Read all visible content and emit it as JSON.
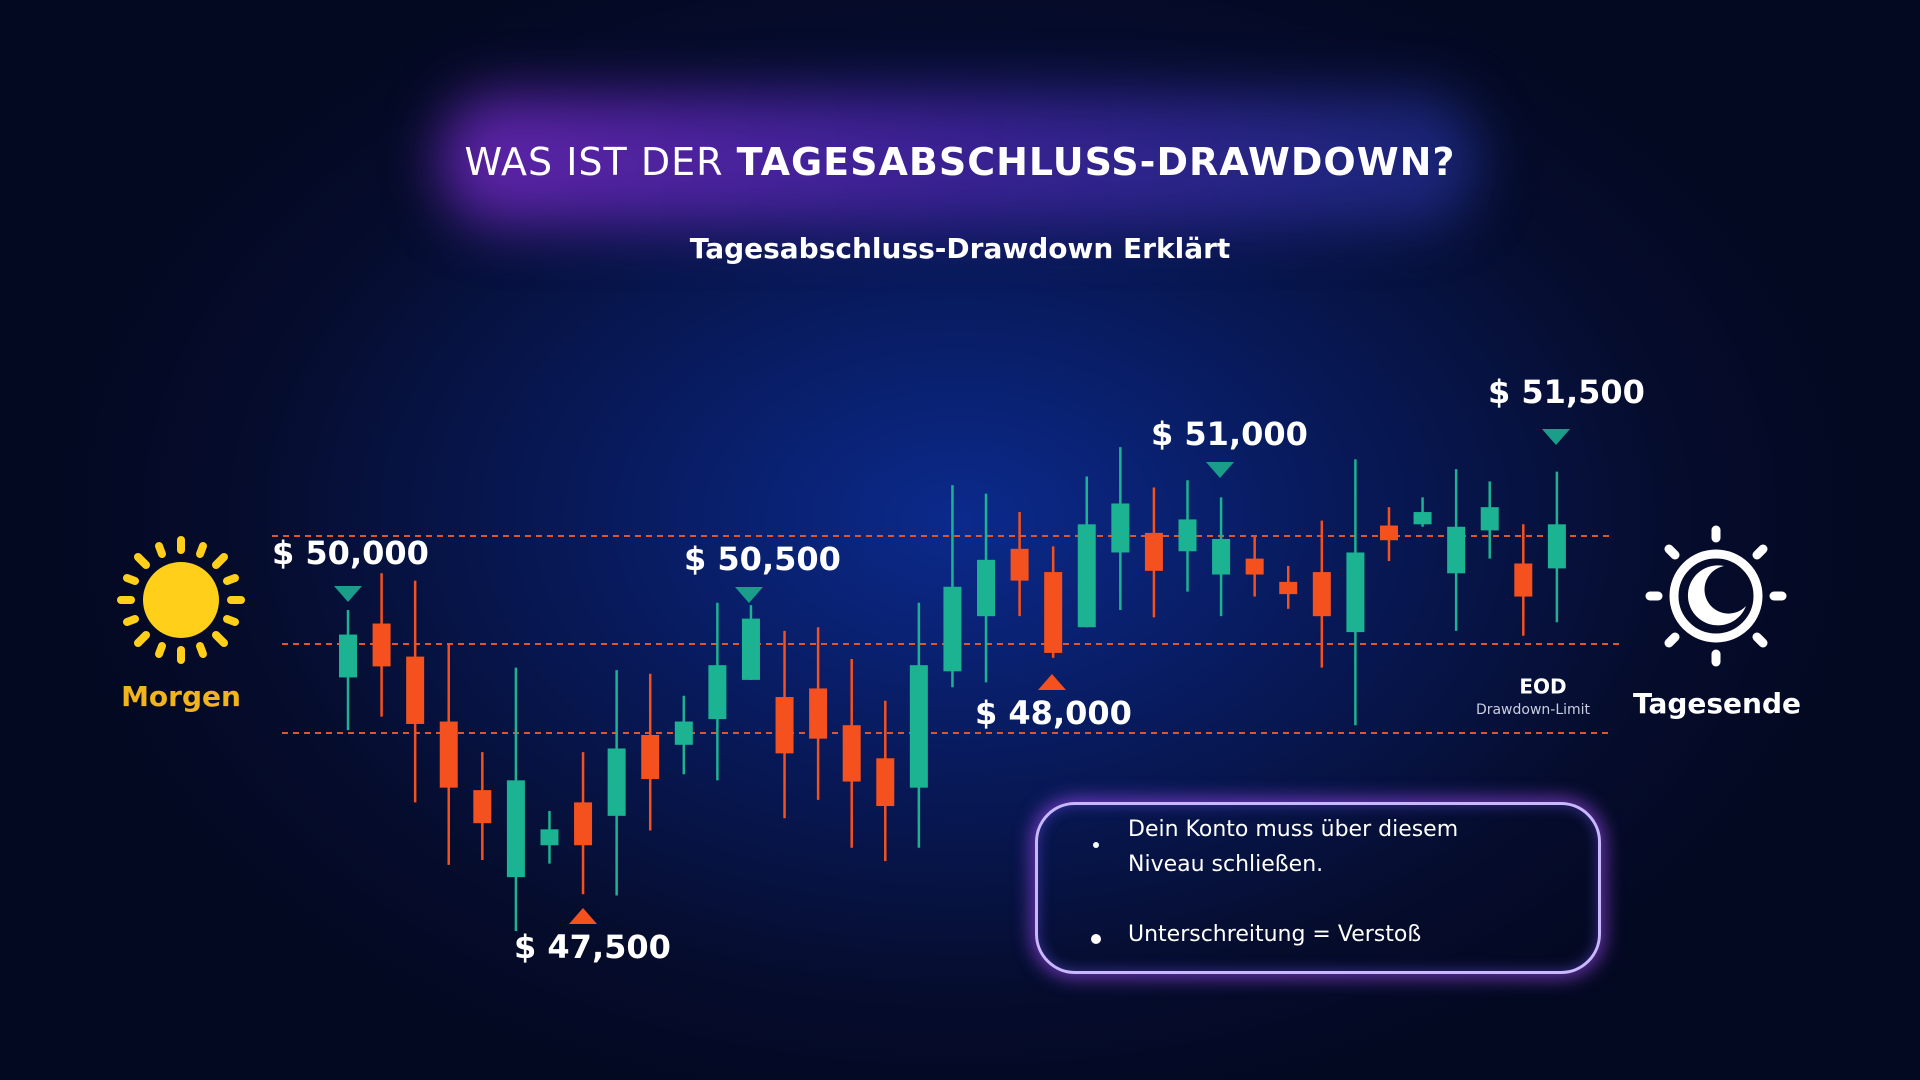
{
  "title_prefix": "WAS IST DER",
  "title_emphasis": "TAGESABSCHLUSS-DRAWDOWN?",
  "subtitle": "Tagesabschluss-Drawdown Erklärt",
  "labels": {
    "morning": "Morgen",
    "evening": "Tagesende",
    "eod": "EOD",
    "eod_sub": "Drawdown-Limit"
  },
  "info_box": {
    "line1": "Dein Konto muss über diesem",
    "line2": "Niveau schließen.",
    "bullet2": "Unterschreitung = Verstoß"
  },
  "chart_data": {
    "type": "candlestick",
    "open": [
      49570,
      50010,
      49740,
      49210,
      48650,
      47940,
      48200,
      48550,
      48440,
      49100,
      49020,
      49230,
      49550,
      49410,
      49480,
      49180,
      48910,
      48670,
      49620,
      50070,
      50620,
      50430,
      49980,
      50590,
      50750,
      50600,
      50410,
      50540,
      50350,
      50430,
      49940,
      50810,
      50820,
      50420,
      50770,
      50500,
      50460
    ],
    "high": [
      50120,
      50420,
      50360,
      49840,
      48960,
      49650,
      48480,
      48960,
      49630,
      49600,
      49420,
      50180,
      50160,
      49950,
      49980,
      49720,
      49380,
      50180,
      51140,
      51070,
      50920,
      50640,
      51210,
      51450,
      51120,
      51180,
      51040,
      50730,
      50480,
      50850,
      51350,
      50960,
      51040,
      51270,
      51170,
      50820,
      51250
    ],
    "low": [
      49140,
      49250,
      48550,
      48040,
      48080,
      47500,
      48050,
      47800,
      47790,
      48320,
      48780,
      48730,
      49550,
      48420,
      48570,
      48180,
      48070,
      48180,
      49490,
      49530,
      50070,
      49730,
      49980,
      50120,
      50060,
      50270,
      50070,
      50230,
      50130,
      49650,
      49180,
      50520,
      50800,
      49950,
      50540,
      49910,
      50020
    ],
    "close": [
      49920,
      49660,
      49190,
      48670,
      48380,
      48730,
      48330,
      48200,
      48990,
      48740,
      49210,
      49670,
      50050,
      48950,
      49070,
      48720,
      48520,
      49670,
      50310,
      50530,
      50360,
      49770,
      50820,
      50990,
      50440,
      50860,
      50700,
      50410,
      50250,
      50070,
      50590,
      50690,
      50920,
      50800,
      50960,
      50230,
      50820
    ],
    "up_color": "#1cb392",
    "down_color": "#f4511e",
    "ylim": [
      47500,
      51500
    ],
    "annotations": [
      "$ 50,000",
      "$ 50,500",
      "$ 51,000",
      "$ 51,500",
      "$ 47,500",
      "$ 48,000"
    ]
  }
}
